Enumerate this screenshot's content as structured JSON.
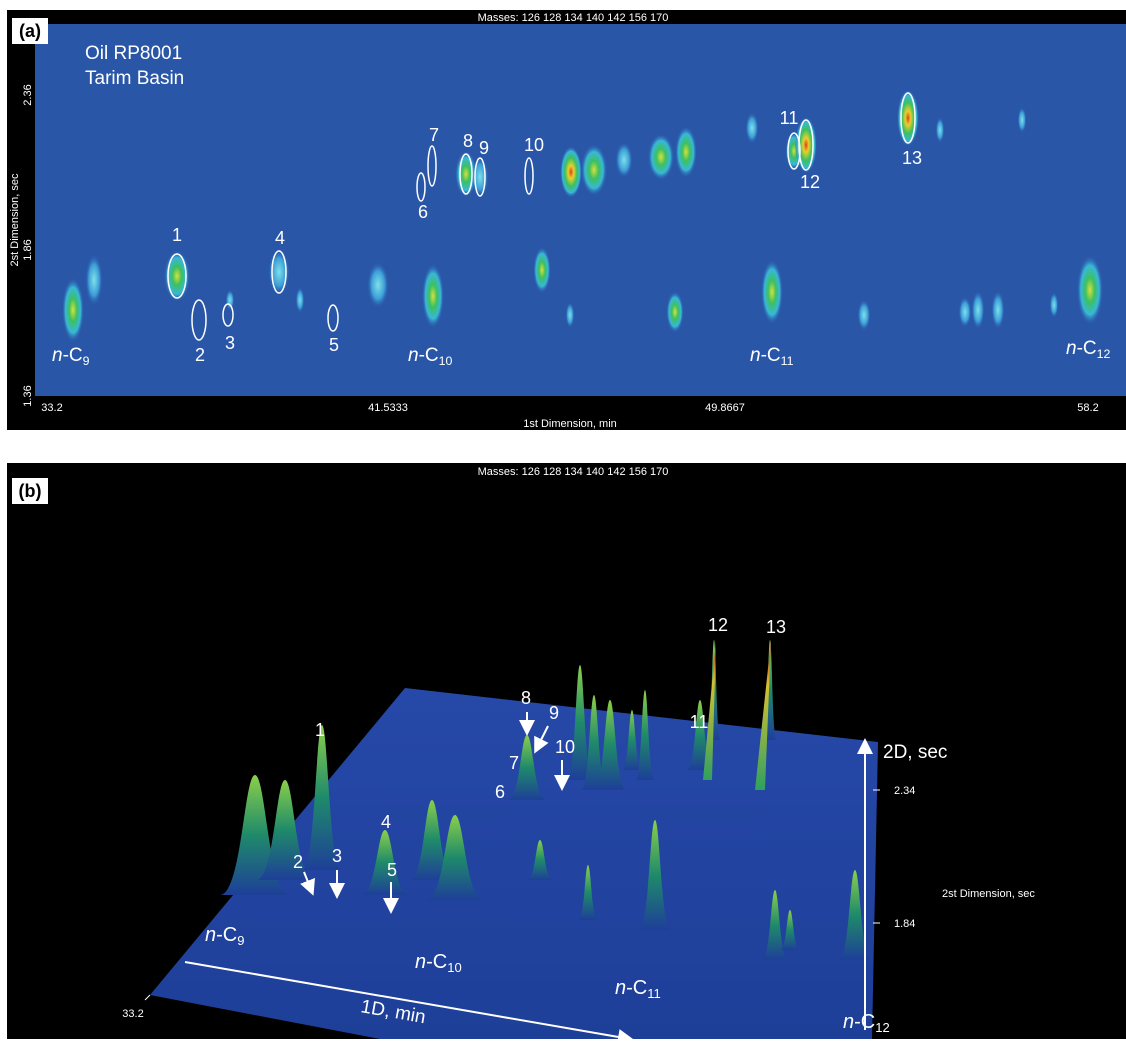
{
  "panels": [
    {
      "label": "(a)",
      "masses": "Masses: 126 128 134 140 142 156 170",
      "sample": [
        "Oil RP8001",
        "Tarim Basin"
      ],
      "y_axis_title": "2st Dimension, sec",
      "x_axis_title": "1st Dimension, min",
      "y_ticks": [
        "2.36",
        "1.86",
        "1.36"
      ],
      "x_ticks": [
        "33.2",
        "41.5333",
        "49.8667",
        "58.2"
      ],
      "peak_labels": [
        "1",
        "2",
        "3",
        "4",
        "5",
        "6",
        "7",
        "8",
        "9",
        "10",
        "11",
        "12",
        "13"
      ],
      "alkanes": [
        {
          "italic": "n",
          "text": "-C",
          "sub": "9"
        },
        {
          "italic": "n",
          "text": "-C",
          "sub": "10"
        },
        {
          "italic": "n",
          "text": "-C",
          "sub": "11"
        },
        {
          "italic": "n",
          "text": "-C",
          "sub": "12"
        }
      ]
    },
    {
      "label": "(b)",
      "masses": "Masses: 126 128 134 140 142 156 170",
      "x_axis_title": "1D, min",
      "x_ticks": [
        "33.2"
      ],
      "y_axis_arrow": "2D, sec",
      "y_ticks": [
        "2.34",
        "1.84"
      ],
      "y_axis_title": "2st Dimension, sec",
      "peak_labels": [
        "1",
        "2",
        "3",
        "4",
        "5",
        "6",
        "7",
        "8",
        "9",
        "10",
        "11",
        "12",
        "13"
      ],
      "alkanes": [
        {
          "italic": "n",
          "text": "-C",
          "sub": "9"
        },
        {
          "italic": "n",
          "text": "-C",
          "sub": "10"
        },
        {
          "italic": "n",
          "text": "-C",
          "sub": "11"
        },
        {
          "italic": "n",
          "text": "-C",
          "sub": "12"
        }
      ]
    }
  ]
}
